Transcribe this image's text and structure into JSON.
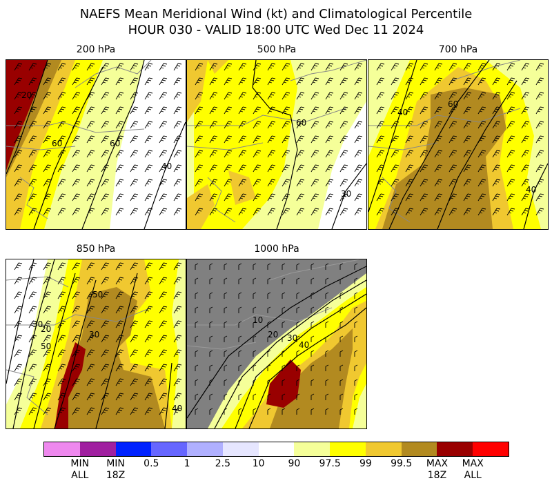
{
  "title_line1": "NAEFS Mean Meridional Wind (kt) and Climatological Percentile",
  "title_line2": "HOUR 030 - VALID 18:00 UTC Wed Dec 11 2024",
  "panels": [
    {
      "label": "200 hPa",
      "contours": [
        "20",
        "60",
        "60",
        "40"
      ]
    },
    {
      "label": "500 hPa",
      "contours": [
        "60",
        "30"
      ]
    },
    {
      "label": "700 hPa",
      "contours": [
        "40",
        "60",
        "40"
      ]
    },
    {
      "label": "850 hPa",
      "contours": [
        "30",
        "20",
        "50",
        "50",
        "30",
        "40"
      ]
    },
    {
      "label": "1000 hPa",
      "contours": [
        "10",
        "20",
        "30",
        "40"
      ]
    }
  ],
  "colorbar": {
    "colors": [
      "#ee88ee",
      "#a020a0",
      "#0022ff",
      "#6666ff",
      "#b0b0ff",
      "#e6e6ff",
      "#ffffff",
      "#f5ff99",
      "#ffff00",
      "#f0c830",
      "#b28a20",
      "#990000",
      "#ff0000"
    ],
    "ticks": [
      {
        "l1": "MIN",
        "l2": "ALL"
      },
      {
        "l1": "MIN",
        "l2": "18Z"
      },
      {
        "l1": "0.5",
        "l2": ""
      },
      {
        "l1": "1",
        "l2": ""
      },
      {
        "l1": "2.5",
        "l2": ""
      },
      {
        "l1": "10",
        "l2": ""
      },
      {
        "l1": "90",
        "l2": ""
      },
      {
        "l1": "97.5",
        "l2": ""
      },
      {
        "l1": "99",
        "l2": ""
      },
      {
        "l1": "99.5",
        "l2": ""
      },
      {
        "l1": "MAX",
        "l2": "18Z"
      },
      {
        "l1": "MAX",
        "l2": "ALL"
      }
    ]
  }
}
